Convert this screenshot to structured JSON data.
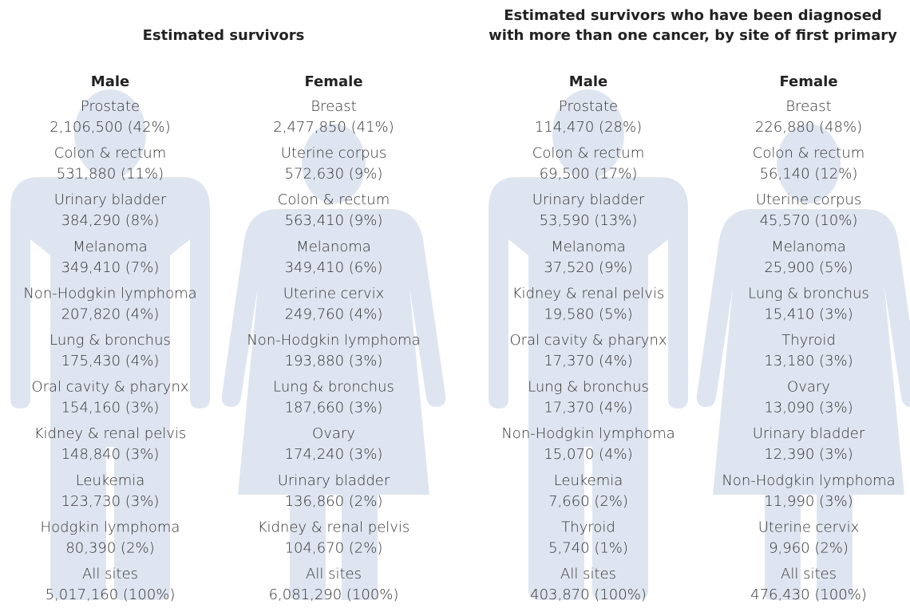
{
  "panels": [
    {
      "title": [
        "Estimated survivors"
      ],
      "columns": [
        {
          "heading": "Male",
          "items": [
            {
              "site": "Prostate",
              "stat": "2,106,500 (42%)"
            },
            {
              "site": "Colon & rectum",
              "stat": "531,880 (11%)"
            },
            {
              "site": "Urinary bladder",
              "stat": "384,290 (8%)"
            },
            {
              "site": "Melanoma",
              "stat": "349,410 (7%)"
            },
            {
              "site": "Non-Hodgkin lymphoma",
              "stat": "207,820 (4%)"
            },
            {
              "site": "Lung & bronchus",
              "stat": "175,430 (4%)"
            },
            {
              "site": "Oral cavity & pharynx",
              "stat": "154,160 (3%)"
            },
            {
              "site": "Kidney & renal pelvis",
              "stat": "148,840 (3%)"
            },
            {
              "site": "Leukemia",
              "stat": "123,730 (3%)"
            },
            {
              "site": "Hodgkin lymphoma",
              "stat": "80,390 (2%)"
            },
            {
              "site": "All sites",
              "stat": "5,017,160 (100%)"
            }
          ]
        },
        {
          "heading": "Female",
          "items": [
            {
              "site": "Breast",
              "stat": "2,477,850 (41%)"
            },
            {
              "site": "Uterine corpus",
              "stat": "572,630 (9%)"
            },
            {
              "site": "Colon & rectum",
              "stat": "563,410 (9%)"
            },
            {
              "site": "Melanoma",
              "stat": "349,410 (6%)"
            },
            {
              "site": "Uterine cervix",
              "stat": "249,760 (4%)"
            },
            {
              "site": "Non-Hodgkin lymphoma",
              "stat": "193,880 (3%)"
            },
            {
              "site": "Lung & bronchus",
              "stat": "187,660 (3%)"
            },
            {
              "site": "Ovary",
              "stat": "174,240 (3%)"
            },
            {
              "site": "Urinary bladder",
              "stat": "136,860 (2%)"
            },
            {
              "site": "Kidney & renal pelvis",
              "stat": "104,670 (2%)"
            },
            {
              "site": "All sites",
              "stat": "6,081,290 (100%)"
            }
          ]
        }
      ]
    },
    {
      "title": [
        "Estimated survivors who have been diagnosed",
        "with more than one cancer, by site of first primary"
      ],
      "columns": [
        {
          "heading": "Male",
          "items": [
            {
              "site": "Prostate",
              "stat": "114,470 (28%)"
            },
            {
              "site": "Colon & rectum",
              "stat": "69,500 (17%)"
            },
            {
              "site": "Urinary bladder",
              "stat": "53,590 (13%)"
            },
            {
              "site": "Melanoma",
              "stat": "37,520 (9%)"
            },
            {
              "site": "Kidney & renal pelvis",
              "stat": "19,580 (5%)"
            },
            {
              "site": "Oral cavity & pharynx",
              "stat": "17,370 (4%)"
            },
            {
              "site": "Lung & bronchus",
              "stat": "17,370 (4%)"
            },
            {
              "site": "Non-Hodgkin lymphoma",
              "stat": "15,070 (4%)"
            },
            {
              "site": "Leukemia",
              "stat": "7,660 (2%)"
            },
            {
              "site": "Thyroid",
              "stat": "5,740 (1%)"
            },
            {
              "site": "All sites",
              "stat": "403,870 (100%)"
            }
          ]
        },
        {
          "heading": "Female",
          "items": [
            {
              "site": "Breast",
              "stat": "226,880 (48%)"
            },
            {
              "site": "Colon & rectum",
              "stat": "56,140 (12%)"
            },
            {
              "site": "Uterine corpus",
              "stat": "45,570 (10%)"
            },
            {
              "site": "Melanoma",
              "stat": "25,900 (5%)"
            },
            {
              "site": "Lung & bronchus",
              "stat": "15,410 (3%)"
            },
            {
              "site": "Thyroid",
              "stat": "13,180 (3%)"
            },
            {
              "site": "Ovary",
              "stat": "13,090 (3%)"
            },
            {
              "site": "Urinary bladder",
              "stat": "12,390 (3%)"
            },
            {
              "site": "Non-Hodgkin lymphoma",
              "stat": "11,990 (3%)"
            },
            {
              "site": "Uterine cervix",
              "stat": "9,960 (2%)"
            },
            {
              "site": "All sites",
              "stat": "476,430 (100%)"
            }
          ]
        }
      ]
    }
  ]
}
